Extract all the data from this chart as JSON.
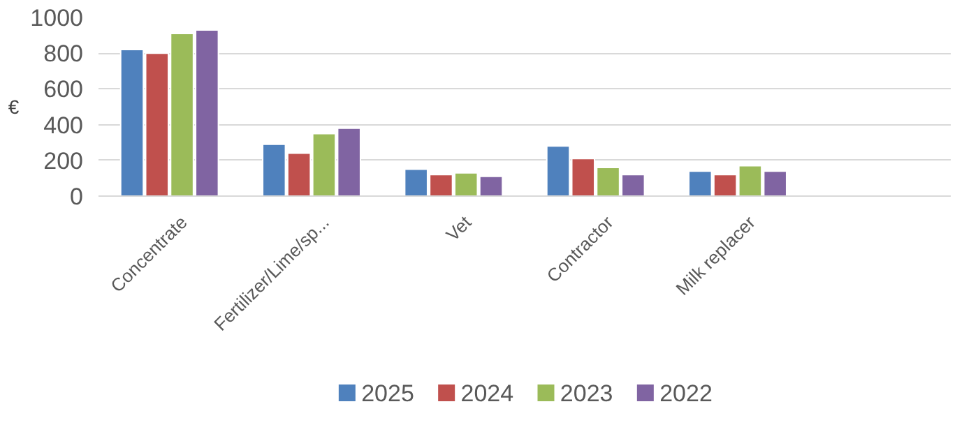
{
  "chart_data": {
    "type": "bar",
    "ylabel": "€",
    "categories": [
      "Concentrate",
      "Fertilizer/Lime/sp...",
      "Vet",
      "Contractor",
      "Milk replacer",
      null
    ],
    "series": [
      {
        "name": "2025",
        "color": "#4f81bd",
        "values": [
          820,
          290,
          150,
          280,
          140,
          null
        ]
      },
      {
        "name": "2024",
        "color": "#c0504d",
        "values": [
          800,
          240,
          120,
          210,
          120,
          null
        ]
      },
      {
        "name": "2023",
        "color": "#9bbb59",
        "values": [
          910,
          350,
          130,
          160,
          170,
          null
        ]
      },
      {
        "name": "2022",
        "color": "#8064a2",
        "values": [
          930,
          380,
          110,
          120,
          140,
          null
        ]
      }
    ],
    "ylim": [
      0,
      1000
    ],
    "yticks": [
      0,
      200,
      400,
      600,
      800,
      1000
    ],
    "grid": "y",
    "legend": "bottom"
  }
}
